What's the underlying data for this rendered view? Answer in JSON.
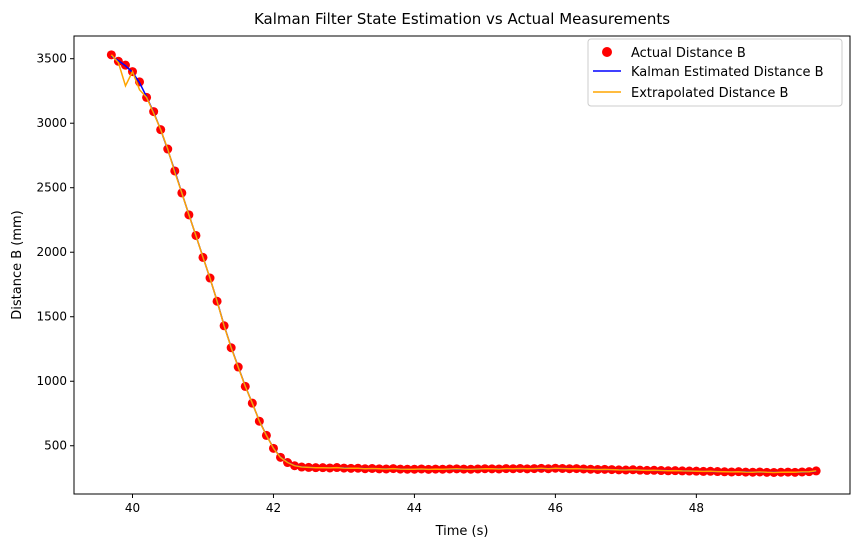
{
  "chart_data": {
    "type": "line",
    "title": "Kalman Filter State Estimation vs Actual Measurements",
    "xlabel": "Time (s)",
    "ylabel": "Distance B (mm)",
    "xlim": [
      39.17,
      50.18
    ],
    "ylim": [
      126,
      3676
    ],
    "xticks": [
      40,
      42,
      44,
      46,
      48
    ],
    "yticks": [
      500,
      1000,
      1500,
      2000,
      2500,
      3000,
      3500
    ],
    "grid": false,
    "legend_position": "top-right",
    "x_start": 39.7,
    "x_step": 0.1,
    "series": [
      {
        "name": "Actual Distance B",
        "kind": "scatter",
        "color": "#ff0000",
        "values": [
          3530,
          3480,
          3450,
          3400,
          3320,
          3200,
          3090,
          2950,
          2800,
          2630,
          2460,
          2290,
          2130,
          1960,
          1800,
          1620,
          1430,
          1260,
          1110,
          960,
          830,
          690,
          580,
          480,
          410,
          370,
          345,
          335,
          332,
          330,
          330,
          328,
          331,
          327,
          325,
          326,
          322,
          324,
          321,
          320,
          323,
          319,
          318,
          318,
          320,
          317,
          319,
          318,
          320,
          321,
          319,
          318,
          320,
          322,
          321,
          320,
          323,
          322,
          324,
          321,
          323,
          325,
          322,
          326,
          324,
          322,
          323,
          320,
          318,
          316,
          317,
          315,
          313,
          312,
          314,
          311,
          309,
          310,
          308,
          306,
          307,
          305,
          304,
          303,
          301,
          302,
          300,
          298,
          297,
          299,
          296,
          295,
          297,
          294,
          293,
          295,
          296,
          294,
          297,
          299,
          305
        ]
      },
      {
        "name": "Kalman Estimated Distance B",
        "kind": "line",
        "color": "#0000ff",
        "values": [
          3520,
          3485,
          3445,
          3395,
          3315,
          3205,
          3085,
          2950,
          2795,
          2630,
          2460,
          2292,
          2128,
          1962,
          1798,
          1622,
          1432,
          1262,
          1112,
          962,
          830,
          692,
          582,
          482,
          412,
          372,
          347,
          336,
          332,
          330,
          330,
          329,
          330,
          328,
          326,
          325,
          323,
          323,
          321,
          321,
          322,
          320,
          319,
          318,
          319,
          318,
          318,
          318,
          319,
          320,
          319,
          319,
          320,
          321,
          321,
          321,
          322,
          322,
          323,
          322,
          323,
          324,
          323,
          325,
          324,
          323,
          322,
          320,
          318,
          317,
          316,
          315,
          314,
          313,
          313,
          311,
          310,
          309,
          308,
          307,
          306,
          305,
          304,
          303,
          302,
          301,
          300,
          299,
          298,
          298,
          297,
          296,
          296,
          295,
          294,
          294,
          295,
          295,
          296,
          298,
          302
        ]
      },
      {
        "name": "Extrapolated Distance B",
        "kind": "line",
        "color": "#ffa500",
        "values": [
          3530,
          3470,
          3290,
          3400,
          3260,
          3200,
          3080,
          2950,
          2800,
          2620,
          2460,
          2290,
          2130,
          1960,
          1800,
          1620,
          1430,
          1260,
          1110,
          960,
          830,
          690,
          580,
          480,
          410,
          370,
          345,
          335,
          332,
          330,
          330,
          328,
          331,
          327,
          325,
          326,
          322,
          324,
          321,
          320,
          323,
          319,
          318,
          318,
          320,
          317,
          319,
          318,
          320,
          321,
          319,
          318,
          320,
          322,
          321,
          320,
          323,
          322,
          324,
          321,
          323,
          325,
          322,
          326,
          324,
          322,
          323,
          320,
          318,
          316,
          317,
          315,
          313,
          312,
          314,
          311,
          309,
          310,
          308,
          306,
          307,
          305,
          304,
          303,
          301,
          302,
          300,
          298,
          297,
          299,
          296,
          295,
          297,
          294,
          293,
          295,
          296,
          294,
          297,
          299,
          305
        ]
      }
    ]
  }
}
